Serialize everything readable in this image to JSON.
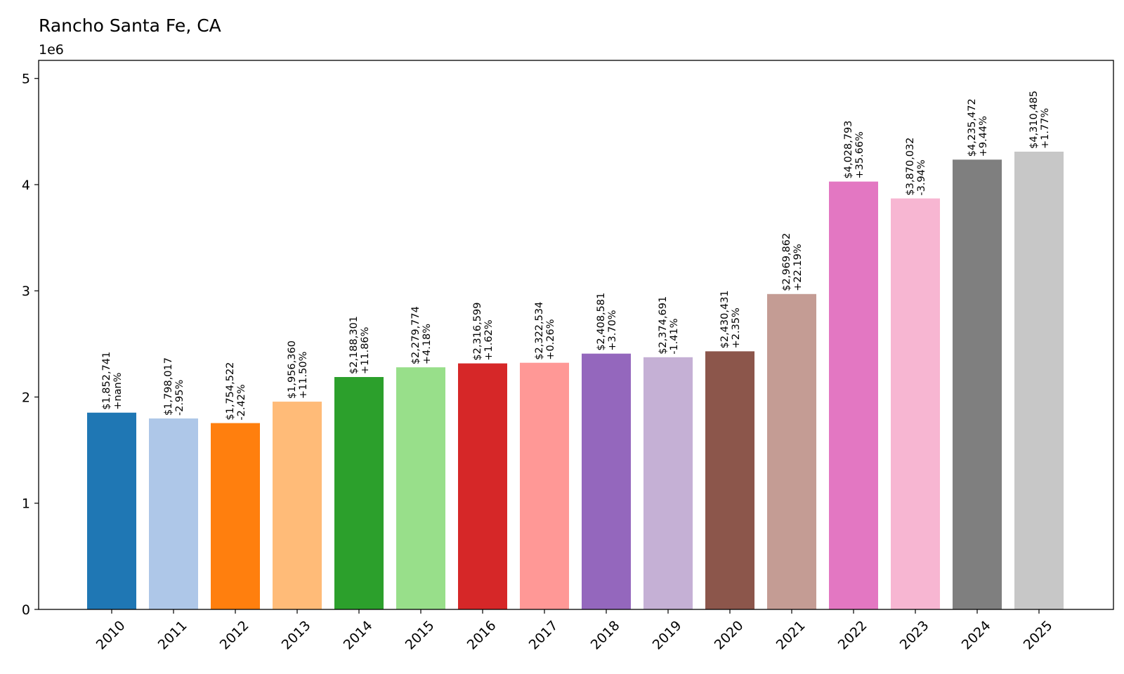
{
  "chart_data": {
    "type": "bar",
    "title": "Rancho Santa Fe, CA",
    "y_offset_label": "1e6",
    "xlabel": "",
    "ylabel": "",
    "ylim": [
      0,
      5170000
    ],
    "yticks": [
      0,
      1000000,
      2000000,
      3000000,
      4000000,
      5000000
    ],
    "ytick_labels": [
      "0",
      "1",
      "2",
      "3",
      "4",
      "5"
    ],
    "grid": false,
    "categories": [
      "2010",
      "2011",
      "2012",
      "2013",
      "2014",
      "2015",
      "2016",
      "2017",
      "2018",
      "2019",
      "2020",
      "2021",
      "2022",
      "2023",
      "2024",
      "2025"
    ],
    "values": [
      1852741,
      1798017,
      1754522,
      1956360,
      2188301,
      2279774,
      2316599,
      2322534,
      2408581,
      2374691,
      2430431,
      2969862,
      4028793,
      3870032,
      4235472,
      4310485
    ],
    "value_labels": [
      "$1,852,741",
      "$1,798,017",
      "$1,754,522",
      "$1,956,360",
      "$2,188,301",
      "$2,279,774",
      "$2,316,599",
      "$2,322,534",
      "$2,408,581",
      "$2,374,691",
      "$2,430,431",
      "$2,969,862",
      "$4,028,793",
      "$3,870,032",
      "$4,235,472",
      "$4,310,485"
    ],
    "change_labels": [
      "+nan%",
      "-2.95%",
      "-2.42%",
      "+11.50%",
      "+11.86%",
      "+4.18%",
      "+1.62%",
      "+0.26%",
      "+3.70%",
      "-1.41%",
      "+2.35%",
      "+22.19%",
      "+35.66%",
      "-3.94%",
      "+9.44%",
      "+1.77%"
    ],
    "colors": [
      "#1f77b4",
      "#aec7e8",
      "#ff7f0e",
      "#ffbb78",
      "#2ca02c",
      "#98df8a",
      "#d62728",
      "#ff9896",
      "#9467bd",
      "#c5b0d5",
      "#8c564b",
      "#c49c94",
      "#e377c2",
      "#f7b6d2",
      "#7f7f7f",
      "#c7c7c7"
    ]
  }
}
